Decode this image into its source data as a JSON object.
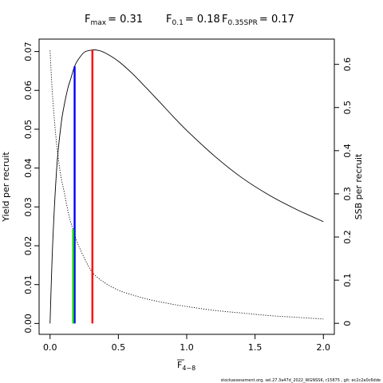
{
  "chart_data": {
    "type": "line",
    "title": {
      "fmax": {
        "label": "F",
        "sub": "max",
        "value": "= 0.31"
      },
      "f01": {
        "label": "F",
        "sub": "0.1",
        "value": "= 0.18"
      },
      "fspr": {
        "label": "F",
        "sub": "0.35SPR",
        "value": "= 0.17"
      }
    },
    "xlabel": {
      "base": "F",
      "sub": "4−8"
    },
    "ylabel_left": "Yield per recruit",
    "ylabel_right": "SSB per recruit",
    "xlim": [
      -0.08,
      2.08
    ],
    "ylim_left": [
      -0.0028,
      0.0732
    ],
    "ylim_right": [
      -0.0255,
      0.6585
    ],
    "x_ticks": [
      {
        "value": 0,
        "label": "0.0"
      },
      {
        "value": 0.5,
        "label": "0.5"
      },
      {
        "value": 1.0,
        "label": "1.0"
      },
      {
        "value": 1.5,
        "label": "1.5"
      },
      {
        "value": 2.0,
        "label": "2.0"
      }
    ],
    "y_left_ticks": [
      {
        "value": 0,
        "label": "0.00"
      },
      {
        "value": 0.01,
        "label": "0.01"
      },
      {
        "value": 0.02,
        "label": "0.02"
      },
      {
        "value": 0.03,
        "label": "0.03"
      },
      {
        "value": 0.04,
        "label": "0.04"
      },
      {
        "value": 0.05,
        "label": "0.05"
      },
      {
        "value": 0.06,
        "label": "0.06"
      },
      {
        "value": 0.07,
        "label": "0.07"
      }
    ],
    "y_right_ticks": [
      {
        "value": 0,
        "label": "0"
      },
      {
        "value": 0.1,
        "label": "0.1"
      },
      {
        "value": 0.2,
        "label": "0.2"
      },
      {
        "value": 0.3,
        "label": "0.3"
      },
      {
        "value": 0.4,
        "label": "0.4"
      },
      {
        "value": 0.5,
        "label": "0.5"
      },
      {
        "value": 0.6,
        "label": "0.6"
      }
    ],
    "series": [
      {
        "axis": "left",
        "style": "solid",
        "color": "#000000",
        "x": [
          0,
          0.02,
          0.05,
          0.08,
          0.1,
          0.13,
          0.15,
          0.17,
          0.18,
          0.2,
          0.25,
          0.31,
          0.35,
          0.4,
          0.5,
          0.6,
          0.7,
          0.8,
          0.9,
          1.0,
          1.2,
          1.4,
          1.6,
          1.8,
          2.0
        ],
        "y": [
          0.0,
          0.021,
          0.0405,
          0.051,
          0.0555,
          0.0605,
          0.0628,
          0.0652,
          0.0662,
          0.0676,
          0.0698,
          0.0704,
          0.0703,
          0.0697,
          0.0675,
          0.0644,
          0.0608,
          0.0571,
          0.0533,
          0.0497,
          0.0432,
          0.0376,
          0.0331,
          0.0294,
          0.0262
        ]
      },
      {
        "axis": "right",
        "style": "dotted",
        "color": "#000000",
        "x": [
          0,
          0.02,
          0.05,
          0.08,
          0.1,
          0.13,
          0.15,
          0.17,
          0.2,
          0.25,
          0.31,
          0.4,
          0.5,
          0.6,
          0.7,
          0.8,
          0.9,
          1.0,
          1.2,
          1.4,
          1.6,
          1.8,
          2.0
        ],
        "y": [
          0.632,
          0.52,
          0.41,
          0.34,
          0.31,
          0.262,
          0.236,
          0.216,
          0.187,
          0.152,
          0.118,
          0.094,
          0.077,
          0.066,
          0.057,
          0.05,
          0.044,
          0.039,
          0.03,
          0.024,
          0.018,
          0.014,
          0.01
        ]
      }
    ],
    "ref_lines": [
      {
        "name": "fmax",
        "color": "#ff0000",
        "x": 0.31,
        "y_top": 0.0704
      },
      {
        "name": "f01",
        "color": "#0000ff",
        "x": 0.18,
        "y_top": 0.0662
      },
      {
        "name": "fspr",
        "color": "#00cc00",
        "x": 0.17,
        "y_top": 0.0243
      }
    ]
  },
  "footer": "stockassessment.org, sel.27.3a47d_2022_WGNSSK, r15875 , git: ec2c2a0c6dde"
}
